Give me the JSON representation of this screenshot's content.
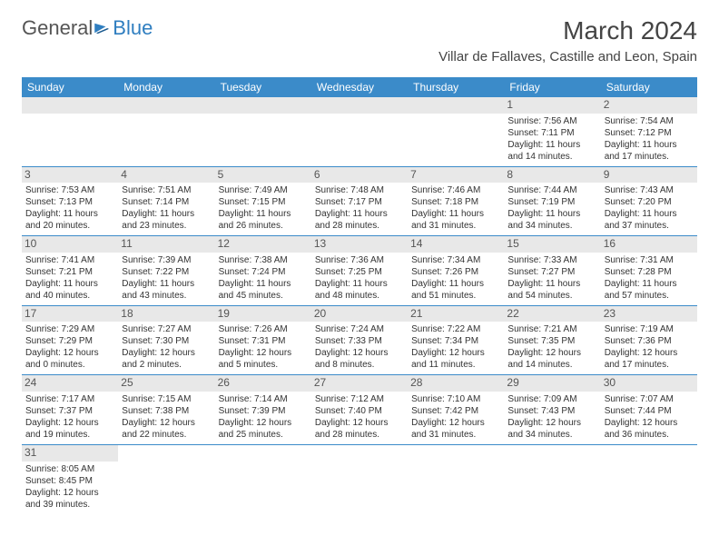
{
  "brand": {
    "part1": "General",
    "part2": "Blue"
  },
  "header": {
    "month_title": "March 2024",
    "location": "Villar de Fallaves, Castille and Leon, Spain"
  },
  "colors": {
    "header_bg": "#3b8bc9",
    "header_text": "#ffffff",
    "daynum_bg": "#e8e8e8",
    "border": "#3b8bc9",
    "brand_accent": "#2f7ec0"
  },
  "days_of_week": [
    "Sunday",
    "Monday",
    "Tuesday",
    "Wednesday",
    "Thursday",
    "Friday",
    "Saturday"
  ],
  "weeks": [
    [
      null,
      null,
      null,
      null,
      null,
      {
        "n": "1",
        "sr": "Sunrise: 7:56 AM",
        "ss": "Sunset: 7:11 PM",
        "dl": "Daylight: 11 hours and 14 minutes."
      },
      {
        "n": "2",
        "sr": "Sunrise: 7:54 AM",
        "ss": "Sunset: 7:12 PM",
        "dl": "Daylight: 11 hours and 17 minutes."
      }
    ],
    [
      {
        "n": "3",
        "sr": "Sunrise: 7:53 AM",
        "ss": "Sunset: 7:13 PM",
        "dl": "Daylight: 11 hours and 20 minutes."
      },
      {
        "n": "4",
        "sr": "Sunrise: 7:51 AM",
        "ss": "Sunset: 7:14 PM",
        "dl": "Daylight: 11 hours and 23 minutes."
      },
      {
        "n": "5",
        "sr": "Sunrise: 7:49 AM",
        "ss": "Sunset: 7:15 PM",
        "dl": "Daylight: 11 hours and 26 minutes."
      },
      {
        "n": "6",
        "sr": "Sunrise: 7:48 AM",
        "ss": "Sunset: 7:17 PM",
        "dl": "Daylight: 11 hours and 28 minutes."
      },
      {
        "n": "7",
        "sr": "Sunrise: 7:46 AM",
        "ss": "Sunset: 7:18 PM",
        "dl": "Daylight: 11 hours and 31 minutes."
      },
      {
        "n": "8",
        "sr": "Sunrise: 7:44 AM",
        "ss": "Sunset: 7:19 PM",
        "dl": "Daylight: 11 hours and 34 minutes."
      },
      {
        "n": "9",
        "sr": "Sunrise: 7:43 AM",
        "ss": "Sunset: 7:20 PM",
        "dl": "Daylight: 11 hours and 37 minutes."
      }
    ],
    [
      {
        "n": "10",
        "sr": "Sunrise: 7:41 AM",
        "ss": "Sunset: 7:21 PM",
        "dl": "Daylight: 11 hours and 40 minutes."
      },
      {
        "n": "11",
        "sr": "Sunrise: 7:39 AM",
        "ss": "Sunset: 7:22 PM",
        "dl": "Daylight: 11 hours and 43 minutes."
      },
      {
        "n": "12",
        "sr": "Sunrise: 7:38 AM",
        "ss": "Sunset: 7:24 PM",
        "dl": "Daylight: 11 hours and 45 minutes."
      },
      {
        "n": "13",
        "sr": "Sunrise: 7:36 AM",
        "ss": "Sunset: 7:25 PM",
        "dl": "Daylight: 11 hours and 48 minutes."
      },
      {
        "n": "14",
        "sr": "Sunrise: 7:34 AM",
        "ss": "Sunset: 7:26 PM",
        "dl": "Daylight: 11 hours and 51 minutes."
      },
      {
        "n": "15",
        "sr": "Sunrise: 7:33 AM",
        "ss": "Sunset: 7:27 PM",
        "dl": "Daylight: 11 hours and 54 minutes."
      },
      {
        "n": "16",
        "sr": "Sunrise: 7:31 AM",
        "ss": "Sunset: 7:28 PM",
        "dl": "Daylight: 11 hours and 57 minutes."
      }
    ],
    [
      {
        "n": "17",
        "sr": "Sunrise: 7:29 AM",
        "ss": "Sunset: 7:29 PM",
        "dl": "Daylight: 12 hours and 0 minutes."
      },
      {
        "n": "18",
        "sr": "Sunrise: 7:27 AM",
        "ss": "Sunset: 7:30 PM",
        "dl": "Daylight: 12 hours and 2 minutes."
      },
      {
        "n": "19",
        "sr": "Sunrise: 7:26 AM",
        "ss": "Sunset: 7:31 PM",
        "dl": "Daylight: 12 hours and 5 minutes."
      },
      {
        "n": "20",
        "sr": "Sunrise: 7:24 AM",
        "ss": "Sunset: 7:33 PM",
        "dl": "Daylight: 12 hours and 8 minutes."
      },
      {
        "n": "21",
        "sr": "Sunrise: 7:22 AM",
        "ss": "Sunset: 7:34 PM",
        "dl": "Daylight: 12 hours and 11 minutes."
      },
      {
        "n": "22",
        "sr": "Sunrise: 7:21 AM",
        "ss": "Sunset: 7:35 PM",
        "dl": "Daylight: 12 hours and 14 minutes."
      },
      {
        "n": "23",
        "sr": "Sunrise: 7:19 AM",
        "ss": "Sunset: 7:36 PM",
        "dl": "Daylight: 12 hours and 17 minutes."
      }
    ],
    [
      {
        "n": "24",
        "sr": "Sunrise: 7:17 AM",
        "ss": "Sunset: 7:37 PM",
        "dl": "Daylight: 12 hours and 19 minutes."
      },
      {
        "n": "25",
        "sr": "Sunrise: 7:15 AM",
        "ss": "Sunset: 7:38 PM",
        "dl": "Daylight: 12 hours and 22 minutes."
      },
      {
        "n": "26",
        "sr": "Sunrise: 7:14 AM",
        "ss": "Sunset: 7:39 PM",
        "dl": "Daylight: 12 hours and 25 minutes."
      },
      {
        "n": "27",
        "sr": "Sunrise: 7:12 AM",
        "ss": "Sunset: 7:40 PM",
        "dl": "Daylight: 12 hours and 28 minutes."
      },
      {
        "n": "28",
        "sr": "Sunrise: 7:10 AM",
        "ss": "Sunset: 7:42 PM",
        "dl": "Daylight: 12 hours and 31 minutes."
      },
      {
        "n": "29",
        "sr": "Sunrise: 7:09 AM",
        "ss": "Sunset: 7:43 PM",
        "dl": "Daylight: 12 hours and 34 minutes."
      },
      {
        "n": "30",
        "sr": "Sunrise: 7:07 AM",
        "ss": "Sunset: 7:44 PM",
        "dl": "Daylight: 12 hours and 36 minutes."
      }
    ],
    [
      {
        "n": "31",
        "sr": "Sunrise: 8:05 AM",
        "ss": "Sunset: 8:45 PM",
        "dl": "Daylight: 12 hours and 39 minutes."
      },
      null,
      null,
      null,
      null,
      null,
      null
    ]
  ]
}
